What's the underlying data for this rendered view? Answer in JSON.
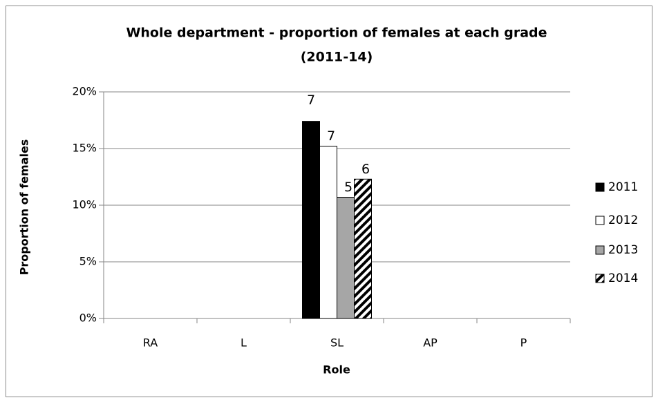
{
  "chart_data": {
    "type": "bar",
    "title": [
      "Whole department - proportion of females at each grade",
      "(2011-14)"
    ],
    "x_label": "Role",
    "y_label": "Proportion of females",
    "categories": [
      "RA",
      "L",
      "SL",
      "AP",
      "P"
    ],
    "series": [
      {
        "name": "2011",
        "color": "#000000",
        "values": [
          null,
          null,
          17.4,
          null,
          null
        ],
        "counts": [
          null,
          null,
          7,
          null,
          null
        ]
      },
      {
        "name": "2012",
        "color": "#ffffff",
        "values": [
          null,
          null,
          15.2,
          null,
          null
        ],
        "counts": [
          null,
          null,
          7,
          null,
          null
        ]
      },
      {
        "name": "2013",
        "color": "#a6a6a6",
        "values": [
          null,
          null,
          10.7,
          null,
          null
        ],
        "counts": [
          null,
          null,
          5,
          null,
          null
        ]
      },
      {
        "name": "2014",
        "color": "#000000",
        "hatch": true,
        "values": [
          null,
          null,
          12.3,
          null,
          null
        ],
        "counts": [
          null,
          null,
          6,
          null,
          null
        ]
      }
    ],
    "ylim": [
      0,
      20
    ],
    "yticks": [
      {
        "value": 0,
        "label": "0%"
      },
      {
        "value": 5,
        "label": "5%"
      },
      {
        "value": 10,
        "label": "10%"
      },
      {
        "value": 15,
        "label": "15%"
      },
      {
        "value": 20,
        "label": "20%"
      }
    ],
    "grid": true,
    "legend": "right"
  }
}
